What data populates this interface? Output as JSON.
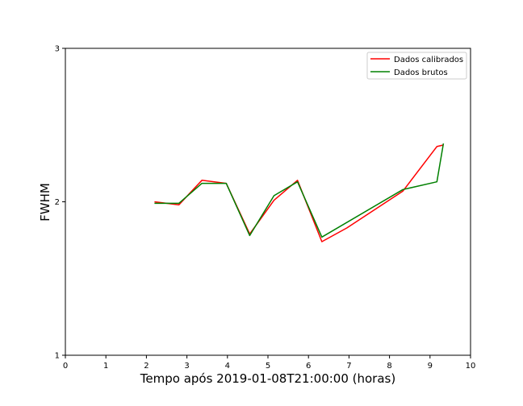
{
  "chart_data": {
    "type": "line",
    "title": "",
    "xlabel": "Tempo após 2019-01-08T21:00:00 (horas)",
    "ylabel": "FWHM",
    "xlim": [
      0,
      10
    ],
    "ylim": [
      1,
      3
    ],
    "xticks": [
      0,
      1,
      2,
      3,
      4,
      5,
      6,
      7,
      8,
      9,
      10
    ],
    "yticks": [
      1,
      2,
      3
    ],
    "grid": false,
    "legend_position": "upper right",
    "series": [
      {
        "name": "Dados calibrados",
        "color": "#ff0000",
        "points": [
          [
            2.2,
            2.0
          ],
          [
            2.8,
            1.98
          ],
          [
            3.37,
            2.14
          ],
          [
            3.97,
            2.12
          ],
          [
            4.55,
            1.79
          ],
          [
            5.15,
            2.01
          ],
          [
            5.73,
            2.14
          ],
          [
            6.33,
            1.74
          ],
          [
            6.95,
            1.83
          ],
          [
            8.33,
            2.07
          ],
          [
            9.17,
            2.36
          ],
          [
            9.33,
            2.37
          ]
        ]
      },
      {
        "name": "Dados brutos",
        "color": "#008000",
        "points": [
          [
            2.2,
            1.99
          ],
          [
            2.8,
            1.99
          ],
          [
            3.37,
            2.12
          ],
          [
            3.97,
            2.12
          ],
          [
            4.55,
            1.78
          ],
          [
            5.15,
            2.04
          ],
          [
            5.73,
            2.13
          ],
          [
            6.33,
            1.77
          ],
          [
            8.33,
            2.08
          ],
          [
            9.17,
            2.13
          ],
          [
            9.33,
            2.38
          ]
        ]
      }
    ]
  }
}
